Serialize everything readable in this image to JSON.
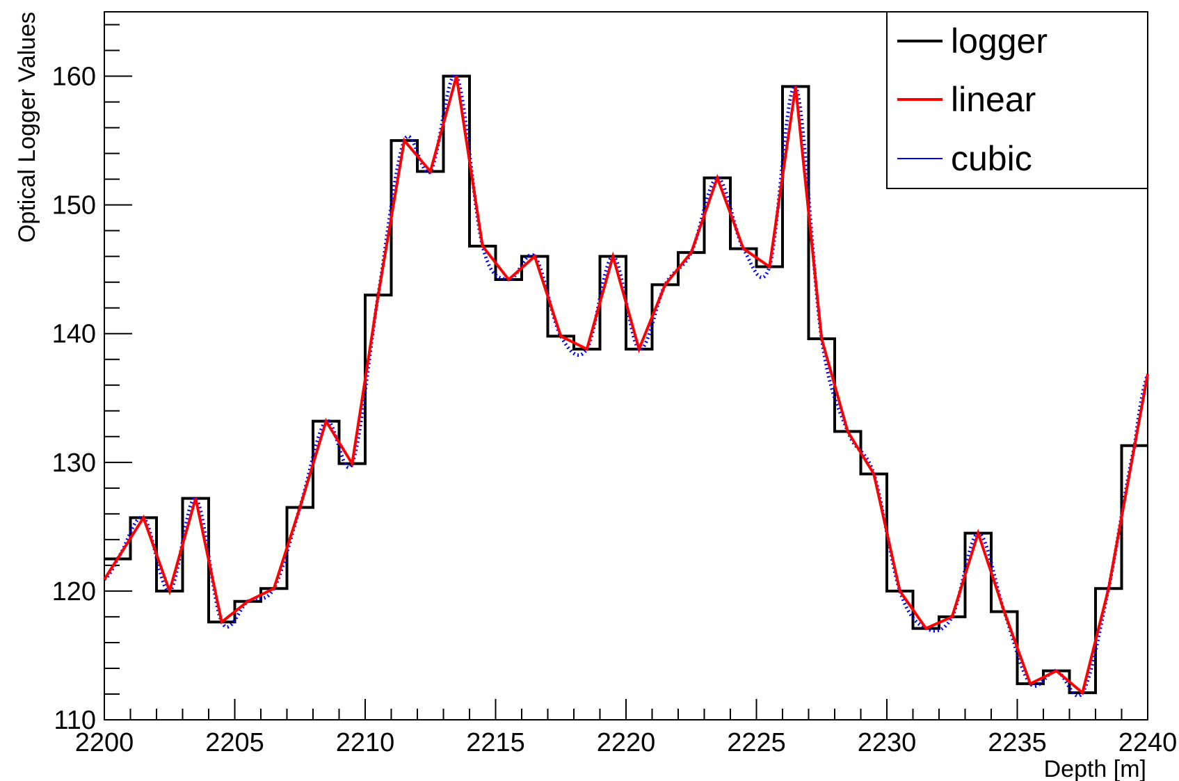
{
  "chart_data": {
    "type": "line",
    "title": "",
    "xlabel": "Depth [m]",
    "ylabel": "Optical Logger Values",
    "xlim": [
      2200,
      2240
    ],
    "ylim": [
      110,
      165
    ],
    "x_ticks": [
      "2200",
      "2205",
      "2210",
      "2215",
      "2220",
      "2225",
      "2230",
      "2235",
      "2240"
    ],
    "y_ticks": [
      "110",
      "120",
      "130",
      "140",
      "150",
      "160"
    ],
    "grid": false,
    "legend_position": "top-right",
    "logger_bin_width": 1,
    "series": [
      {
        "name": "logger",
        "style": "step",
        "color": "#000000",
        "x": [
          2200.5,
          2201.5,
          2202.5,
          2203.5,
          2204.5,
          2205.5,
          2206.5,
          2207.5,
          2208.5,
          2209.5,
          2210.5,
          2211.5,
          2212.5,
          2213.5,
          2214.5,
          2215.5,
          2216.5,
          2217.5,
          2218.5,
          2219.5,
          2220.5,
          2221.5,
          2222.5,
          2223.5,
          2224.5,
          2225.5,
          2226.5,
          2227.5,
          2228.5,
          2229.5,
          2230.5,
          2231.5,
          2232.5,
          2233.5,
          2234.5,
          2235.5,
          2236.5,
          2237.5,
          2238.5,
          2239.5
        ],
        "y": [
          122.5,
          125.7,
          120.0,
          127.2,
          117.6,
          119.2,
          120.2,
          126.5,
          133.2,
          129.9,
          143.0,
          155.0,
          152.6,
          160.0,
          146.8,
          144.2,
          146.0,
          139.8,
          138.8,
          146.0,
          138.8,
          143.8,
          146.3,
          152.1,
          146.6,
          145.2,
          159.2,
          139.6,
          132.4,
          129.1,
          120.0,
          117.1,
          118.0,
          124.5,
          118.4,
          112.8,
          113.8,
          112.1,
          120.2,
          131.3
        ]
      },
      {
        "name": "linear",
        "style": "line",
        "color": "#ff0000"
      },
      {
        "name": "cubic",
        "style": "dotted",
        "color": "#0000ff"
      }
    ]
  }
}
